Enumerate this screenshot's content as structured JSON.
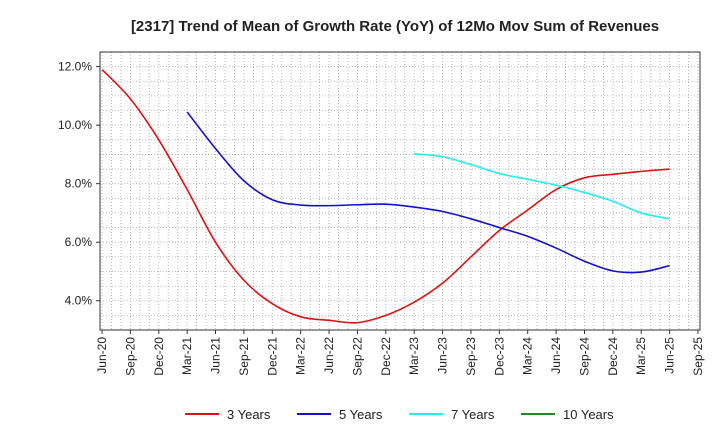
{
  "chart_data": {
    "type": "line",
    "title": "[2317]  Trend of Mean of Growth Rate (YoY) of 12Mo Mov Sum of Revenues",
    "xlabel": "",
    "ylabel": "",
    "ylim": [
      3.0,
      12.5
    ],
    "y_ticks": [
      4.0,
      6.0,
      8.0,
      10.0,
      12.0
    ],
    "y_tick_labels": [
      "4.0%",
      "6.0%",
      "8.0%",
      "10.0%",
      "12.0%"
    ],
    "x_tick_labels": [
      "Jun-20",
      "Sep-20",
      "Dec-20",
      "Mar-21",
      "Jun-21",
      "Sep-21",
      "Dec-21",
      "Mar-22",
      "Jun-22",
      "Sep-22",
      "Dec-22",
      "Mar-23",
      "Jun-23",
      "Sep-23",
      "Dec-23",
      "Mar-24",
      "Jun-24",
      "Sep-24",
      "Dec-24",
      "Mar-25",
      "Jun-25",
      "Sep-25"
    ],
    "grid": true,
    "legend_position": "bottom",
    "series": [
      {
        "name": "3 Years",
        "color": "#dd1111",
        "values": [
          11.9,
          10.9,
          9.5,
          7.8,
          6.0,
          4.7,
          3.9,
          3.45,
          3.33,
          3.25,
          3.5,
          3.95,
          4.6,
          5.5,
          6.4,
          7.1,
          7.8,
          8.2,
          8.32,
          8.42,
          8.5,
          null
        ]
      },
      {
        "name": "5 Years",
        "color": "#1111cc",
        "values": [
          null,
          null,
          null,
          10.45,
          9.2,
          8.1,
          7.45,
          7.27,
          7.25,
          7.28,
          7.3,
          7.2,
          7.05,
          6.8,
          6.5,
          6.2,
          5.8,
          5.35,
          5.02,
          4.98,
          5.2,
          null
        ]
      },
      {
        "name": "7 Years",
        "color": "#22eeee",
        "values": [
          null,
          null,
          null,
          null,
          null,
          null,
          null,
          null,
          null,
          null,
          null,
          9.02,
          8.92,
          8.65,
          8.35,
          8.15,
          7.95,
          7.7,
          7.4,
          7.0,
          6.8,
          null
        ]
      },
      {
        "name": "10 Years",
        "color": "#228822",
        "values": [
          null,
          null,
          null,
          null,
          null,
          null,
          null,
          null,
          null,
          null,
          null,
          null,
          null,
          null,
          null,
          null,
          null,
          null,
          null,
          null,
          null,
          null
        ]
      }
    ]
  }
}
